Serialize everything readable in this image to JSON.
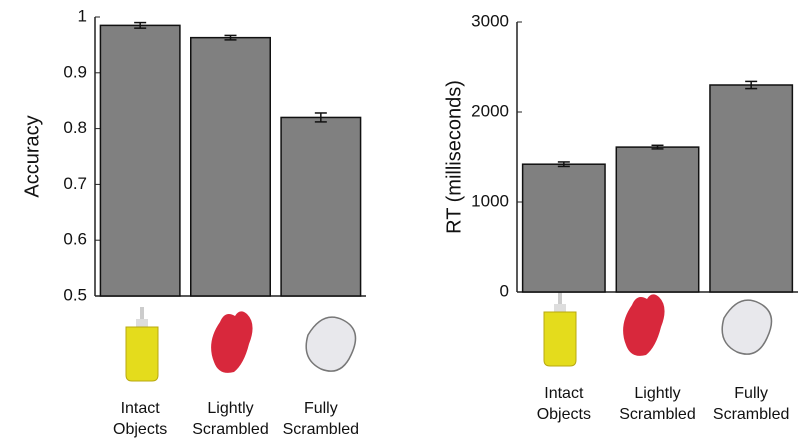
{
  "chart_data": [
    {
      "type": "bar",
      "ylabel": "Accuracy",
      "categories": [
        "Intact Objects",
        "Lightly Scrambled",
        "Fully Scrambled"
      ],
      "values": [
        0.985,
        0.963,
        0.82
      ],
      "errors": [
        0.005,
        0.004,
        0.008
      ],
      "color": "#808080",
      "ylim": [
        0.5,
        1
      ],
      "yticks": [
        0.5,
        0.6,
        0.7,
        0.8,
        0.9,
        1
      ]
    },
    {
      "type": "bar",
      "ylabel": "RT (milliseconds)",
      "categories": [
        "Intact Objects",
        "Lightly Scrambled",
        "Fully Scrambled"
      ],
      "values": [
        1420,
        1610,
        2300
      ],
      "errors": [
        25,
        20,
        40
      ],
      "color": "#808080",
      "ylim": [
        0,
        3000
      ],
      "yticks": [
        0,
        1000,
        2000,
        3000
      ]
    }
  ]
}
